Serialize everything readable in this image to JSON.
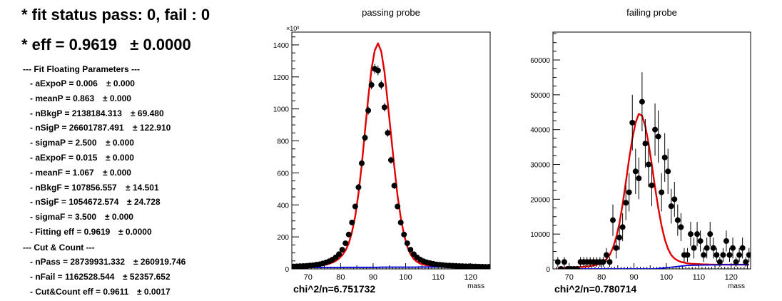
{
  "summary": {
    "status": "* fit status pass: 0, fail : 0",
    "eff": "* eff = 0.9619   ± 0.0000"
  },
  "floating": {
    "header": "--- Fit Floating Parameters ---",
    "rows": [
      {
        "text": "- aExpoP = 0.006",
        "err": "± 0.000"
      },
      {
        "text": "- meanP = 0.863",
        "err": "± 0.000"
      },
      {
        "text": "- nBkgP = 2138184.313",
        "err": "± 69.480"
      },
      {
        "text": "- nSigP = 26601787.491",
        "err": "± 122.910"
      },
      {
        "text": "- sigmaP = 2.500",
        "err": "± 0.000"
      },
      {
        "text": "- aExpoF = 0.015",
        "err": "± 0.000"
      },
      {
        "text": "- meanF = 1.067",
        "err": "± 0.000"
      },
      {
        "text": "- nBkgF = 107856.557",
        "err": "± 14.501"
      },
      {
        "text": "- nSigF = 1054672.574",
        "err": "± 24.728"
      },
      {
        "text": "- sigmaF = 3.500",
        "err": "± 0.000"
      },
      {
        "text": "- Fitting eff = 0.9619",
        "err": "± 0.0000"
      }
    ]
  },
  "cutcount": {
    "header": "--- Cut & Count ---",
    "rows": [
      {
        "text": "- nPass = 28739931.332",
        "err": "± 260919.746"
      },
      {
        "text": "- nFail = 1162528.544",
        "err": "± 52357.652"
      },
      {
        "text": "- Cut&Count eff = 0.9611",
        "err": "± 0.0017"
      }
    ]
  },
  "colors": {
    "fit": "#e00000",
    "background": "#0000dd",
    "points": "#000000"
  },
  "chart_data": [
    {
      "type": "scatter",
      "title": "passing probe",
      "xlabel": "mass",
      "ylabel": "",
      "exponent": "×10³",
      "chi2": "chi^2/n=6.751732",
      "xlim": [
        65,
        126
      ],
      "ylim": [
        0,
        1480
      ],
      "xticks": [
        70,
        80,
        90,
        100,
        110,
        120
      ],
      "yticks": [
        0,
        200,
        400,
        600,
        800,
        1000,
        1200,
        1400
      ],
      "x": [
        60.5,
        61.5,
        62.5,
        63.5,
        64.5,
        65.5,
        66.5,
        67.5,
        68.5,
        69.5,
        70.5,
        71.5,
        72.5,
        73.5,
        74.5,
        75.5,
        76.5,
        77.5,
        78.5,
        79.5,
        80.5,
        81.5,
        82.5,
        83.5,
        84.5,
        85.5,
        86.5,
        87.5,
        88.5,
        89.5,
        90.5,
        91.5,
        92.5,
        93.5,
        94.5,
        95.5,
        96.5,
        97.5,
        98.5,
        99.5,
        100.5,
        101.5,
        102.5,
        103.5,
        104.5,
        105.5,
        106.5,
        107.5,
        108.5,
        109.5,
        110.5,
        111.5,
        112.5,
        113.5,
        114.5,
        115.5,
        116.5,
        117.5,
        118.5,
        119.5,
        120.5,
        121.5,
        122.5,
        123.5,
        124.5,
        125.5
      ],
      "series": [
        {
          "name": "",
          "kind": "data",
          "values": [
            12,
            13,
            14,
            14,
            15,
            15,
            16,
            17,
            18,
            19,
            21,
            23,
            26,
            29,
            34,
            40,
            48,
            58,
            72,
            92,
            120,
            160,
            215,
            290,
            390,
            510,
            660,
            820,
            990,
            1150,
            1250,
            1240,
            1150,
            1010,
            850,
            680,
            520,
            390,
            290,
            215,
            160,
            120,
            92,
            72,
            58,
            48,
            41,
            36,
            32,
            28,
            26,
            24,
            22,
            21,
            20,
            19,
            18,
            17,
            16,
            16,
            15,
            15,
            14,
            14,
            13,
            13
          ],
          "errors": [
            3,
            3,
            3,
            3,
            3,
            3,
            3,
            3,
            3,
            3,
            3,
            3,
            4,
            4,
            4,
            5,
            5,
            6,
            7,
            8,
            10,
            12,
            14,
            16,
            18,
            20,
            22,
            24,
            26,
            28,
            30,
            30,
            28,
            26,
            24,
            22,
            20,
            18,
            16,
            14,
            12,
            10,
            9,
            8,
            7,
            6,
            5,
            5,
            5,
            4,
            4,
            4,
            4,
            4,
            3,
            3,
            3,
            3,
            3,
            3,
            3,
            3,
            3,
            3,
            3,
            3
          ]
        },
        {
          "name": "",
          "kind": "fit",
          "values": [
            8,
            8,
            8,
            9,
            9,
            9,
            10,
            10,
            11,
            12,
            13,
            15,
            17,
            19,
            23,
            27,
            32,
            40,
            50,
            65,
            85,
            115,
            160,
            230,
            330,
            470,
            650,
            860,
            1070,
            1250,
            1365,
            1410,
            1360,
            1230,
            1040,
            840,
            640,
            460,
            320,
            215,
            140,
            92,
            62,
            44,
            33,
            27,
            23,
            21,
            19,
            18,
            17,
            16,
            16,
            15,
            15,
            15,
            14,
            14,
            14,
            14,
            14,
            13,
            13,
            13,
            13,
            13
          ]
        },
        {
          "name": "",
          "kind": "background",
          "values": [
            8,
            8,
            8,
            8,
            8,
            8,
            8,
            8,
            8,
            8,
            9,
            9,
            9,
            9,
            9,
            9,
            9,
            9,
            9,
            9,
            10,
            10,
            10,
            10,
            10,
            10,
            10,
            10,
            10,
            10,
            10,
            10,
            11,
            11,
            11,
            11,
            11,
            11,
            11,
            11,
            11,
            11,
            11,
            11,
            12,
            12,
            12,
            12,
            12,
            12,
            12,
            12,
            12,
            12,
            12,
            12,
            12,
            12,
            12,
            12,
            12,
            12,
            12,
            12,
            12,
            12
          ]
        }
      ]
    },
    {
      "type": "scatter",
      "title": "failing probe",
      "xlabel": "mass",
      "ylabel": "",
      "chi2": "chi^2/n=0.780714",
      "xlim": [
        65,
        126
      ],
      "ylim": [
        0,
        68000
      ],
      "xticks": [
        70,
        80,
        90,
        100,
        110,
        120
      ],
      "yticks": [
        0,
        10000,
        20000,
        30000,
        40000,
        50000,
        60000
      ],
      "x": [
        66.5,
        67.5,
        68.5,
        69.5,
        70.5,
        71.5,
        72.5,
        73.5,
        74.5,
        75.5,
        76.5,
        77.5,
        78.5,
        79.5,
        80.5,
        81.5,
        82.5,
        83.5,
        84.5,
        85.5,
        86.5,
        87.5,
        88.5,
        89.5,
        90.5,
        91.5,
        92.5,
        93.5,
        94.5,
        95.5,
        96.5,
        97.5,
        98.5,
        99.5,
        100.5,
        101.5,
        102.5,
        103.5,
        104.5,
        105.5,
        106.5,
        107.5,
        108.5,
        109.5,
        110.5,
        111.5,
        112.5,
        113.5,
        114.5,
        115.5,
        116.5,
        117.5,
        118.5,
        119.5,
        120.5,
        121.5,
        122.5,
        123.5,
        124.5,
        125.5
      ],
      "series": [
        {
          "name": "",
          "kind": "data",
          "values": [
            2000,
            0,
            2000,
            0,
            0,
            0,
            0,
            2000,
            2000,
            2000,
            2000,
            2000,
            2000,
            2000,
            2000,
            4000,
            2000,
            14000,
            6000,
            9000,
            12000,
            19000,
            22000,
            42000,
            28000,
            26000,
            48000,
            36000,
            30000,
            24000,
            40000,
            38000,
            22000,
            32000,
            28000,
            18000,
            20000,
            14000,
            12000,
            4000,
            4000,
            10000,
            6000,
            10000,
            8000,
            4000,
            6000,
            10000,
            6000,
            4000,
            2000,
            4000,
            8000,
            4000,
            6000,
            2000,
            4000,
            6000,
            2000,
            4000
          ],
          "errors": [
            1400,
            0,
            1400,
            0,
            0,
            0,
            0,
            1400,
            1400,
            1400,
            1400,
            1400,
            1400,
            1400,
            1400,
            2000,
            1400,
            4500,
            3000,
            3500,
            4000,
            5000,
            5500,
            8000,
            6500,
            6000,
            8500,
            7000,
            6500,
            6000,
            7500,
            7500,
            5500,
            7000,
            6500,
            5000,
            5000,
            4500,
            4000,
            2000,
            2000,
            3500,
            3000,
            3500,
            3000,
            2000,
            3000,
            3500,
            3000,
            2000,
            1400,
            2000,
            3000,
            2000,
            3000,
            1400,
            2000,
            3000,
            1400,
            2000
          ]
        },
        {
          "name": "",
          "kind": "fit",
          "values": [
            300,
            300,
            350,
            400,
            400,
            450,
            500,
            550,
            600,
            700,
            800,
            950,
            1200,
            1500,
            2000,
            2800,
            4000,
            6000,
            9000,
            13000,
            18500,
            25000,
            31500,
            37500,
            42000,
            44500,
            44000,
            41000,
            36000,
            30000,
            23500,
            17500,
            12500,
            8500,
            5800,
            4000,
            3000,
            2400,
            2000,
            1800,
            1600,
            1500,
            1450,
            1400,
            1350,
            1300,
            1300,
            1250,
            1250,
            1200,
            1200,
            1200,
            1200,
            1200,
            1200,
            1200,
            1200,
            1200,
            1200,
            1200
          ]
        },
        {
          "name": "",
          "kind": "background",
          "values": [
            0,
            0,
            0,
            0,
            0,
            0,
            0,
            0,
            0,
            0,
            0,
            0,
            0,
            0,
            0,
            0,
            0,
            0,
            0,
            0,
            0,
            0,
            0,
            0,
            0,
            0,
            0,
            0,
            0,
            0,
            0,
            100,
            200,
            300,
            400,
            500,
            600,
            700,
            800,
            900,
            1000,
            1000,
            1050,
            1050,
            1100,
            1100,
            1100,
            1150,
            1150,
            1150,
            1150,
            1200,
            1200,
            1200,
            1200,
            1200,
            1200,
            1200,
            1200,
            1200
          ]
        }
      ]
    }
  ]
}
